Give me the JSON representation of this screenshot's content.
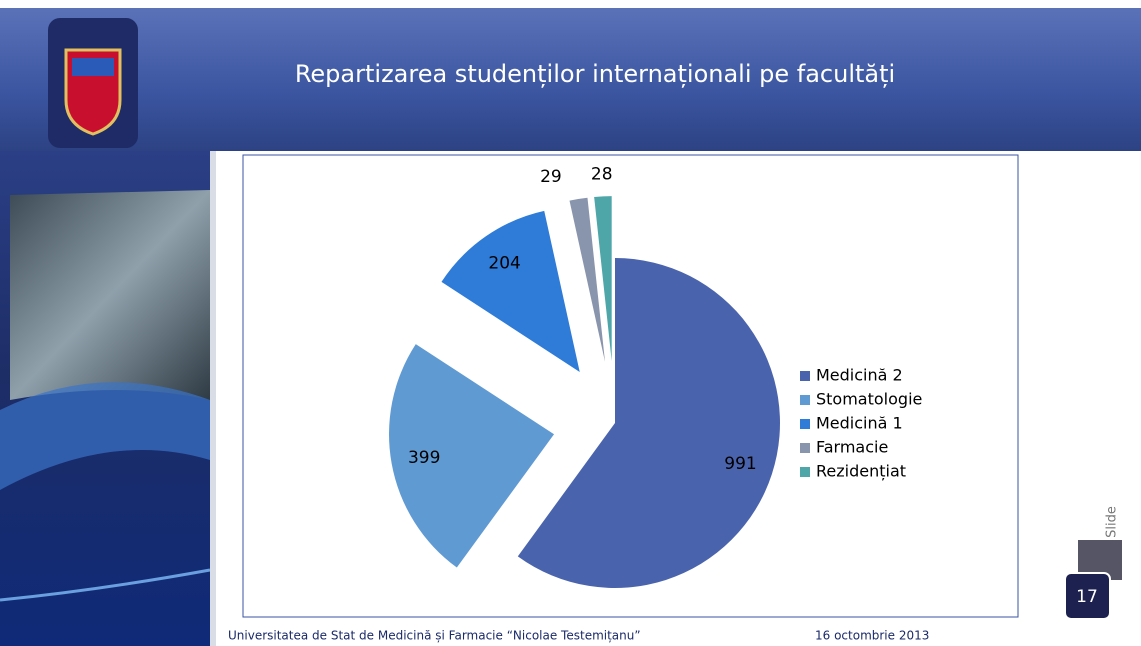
{
  "chart_data": {
    "type": "pie",
    "title": "Repartizarea studenților internaționali pe facultăți",
    "categories": [
      "Medicină 2",
      "Stomatologie",
      "Medicină 1",
      "Farmacie",
      "Rezidențiat"
    ],
    "values": [
      991,
      399,
      204,
      29,
      28
    ],
    "colors": [
      "#4a63ad",
      "#5f9ad3",
      "#2e7bd8",
      "#8994ad",
      "#4fa6a8"
    ],
    "legend": "right"
  },
  "slide": {
    "footer_left": "Universitatea de Stat de Medicină și Farmacie “Nicolae Testemițanu”",
    "footer_right": "16 octombrie 2013",
    "slide_label": "Slide",
    "number": "17"
  }
}
